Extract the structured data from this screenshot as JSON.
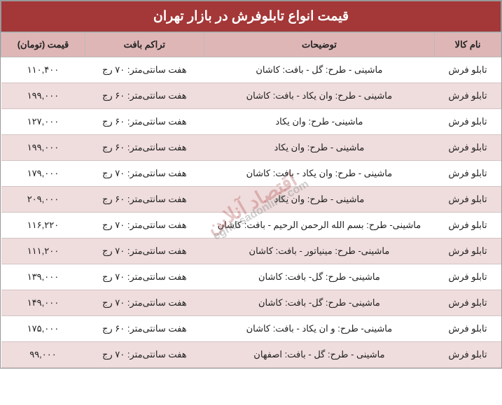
{
  "title": "قیمت انواع تابلوفرش در بازار تهران",
  "watermark_main": "اقتصاد آنلاین",
  "watermark_sub": "eghtesadonline.com",
  "columns": [
    "نام کالا",
    "توضیحات",
    "تراکم بافت",
    "قیمت (تومان)"
  ],
  "rows": [
    {
      "name": "تابلو فرش",
      "desc": "ماشینی - طرح: گل - بافت: کاشان",
      "density": "هفت سانتی‌متر: ۷۰ رج",
      "price": "۱۱۰,۴۰۰"
    },
    {
      "name": "تابلو فرش",
      "desc": "ماشینی - طرح: وان یکاد - بافت: کاشان",
      "density": "هفت سانتی‌متر: ۶۰ رج",
      "price": "۱۹۹,۰۰۰"
    },
    {
      "name": "تابلو فرش",
      "desc": "ماشینی- طرح: وان یکاد",
      "density": "هفت سانتی‌متر: ۶۰ رج",
      "price": "۱۲۷,۰۰۰"
    },
    {
      "name": "تابلو فرش",
      "desc": "ماشینی - طرح: وان یکاد",
      "density": "هفت سانتی‌متر: ۶۰ رج",
      "price": "۱۹۹,۰۰۰"
    },
    {
      "name": "تابلو فرش",
      "desc": "ماشینی - طرح: وان یکاد - بافت: کاشان",
      "density": "هفت سانتی‌متر: ۷۰ رج",
      "price": "۱۷۹,۰۰۰"
    },
    {
      "name": "تابلو فرش",
      "desc": "ماشینی - طرح: وان یکاد",
      "density": "هفت سانتی‌متر: ۶۰ رج",
      "price": "۲۰۹,۰۰۰"
    },
    {
      "name": "تابلو فرش",
      "desc": "ماشینی- طرح: بسم الله الرحمن الرحیم - بافت: کاشان",
      "density": "هفت سانتی‌متر: ۷۰ رج",
      "price": "۱۱۶,۲۲۰"
    },
    {
      "name": "تابلو فرش",
      "desc": "ماشینی- طرح: مینیاتور - بافت: کاشان",
      "density": "هفت سانتی‌متر: ۷۰ رج",
      "price": "۱۱۱,۲۰۰"
    },
    {
      "name": "تابلو فرش",
      "desc": "ماشینی- طرح: گل- بافت: کاشان",
      "density": "هفت سانتی‌متر: ۷۰ رج",
      "price": "۱۳۹,۰۰۰"
    },
    {
      "name": "تابلو فرش",
      "desc": "ماشینی- طرح: گل- بافت: کاشان",
      "density": "هفت سانتی‌متر: ۷۰ رج",
      "price": "۱۴۹,۰۰۰"
    },
    {
      "name": "تابلو فرش",
      "desc": "ماشینی- طرح: و ان یکاد - بافت: کاشان",
      "density": "هفت سانتی‌متر: ۶۰ رج",
      "price": "۱۷۵,۰۰۰"
    },
    {
      "name": "تابلو فرش",
      "desc": "ماشینی - طرح: گل - بافت: اصفهان",
      "density": "هفت سانتی‌متر: ۷۰ رج",
      "price": "۹۹,۰۰۰"
    }
  ],
  "style": {
    "title_bg": "#a43737",
    "title_color": "#ffffff",
    "header_bg": "#dfb6b6",
    "row_odd_bg": "#ffffff",
    "row_even_bg": "#efdcdc",
    "border_color": "#bbb",
    "watermark_color": "rgba(164,55,55,0.28)"
  }
}
